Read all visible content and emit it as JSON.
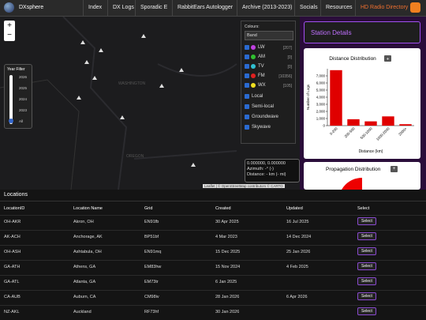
{
  "nav": {
    "brand": "DXsphere",
    "links": [
      "Index",
      "DX Logs",
      "Sporadic E",
      "RabbitEars Autologger",
      "Archive (2013-2023)",
      "Socials",
      "Resources",
      "HD Radio Directory"
    ]
  },
  "map": {
    "zoom": [
      "+",
      "−"
    ],
    "labels": [
      "WASHINGTON",
      "OREGON"
    ],
    "coords": "0.000000, 0.000000",
    "azimuth": "Azimuth: -° (-)",
    "distance": "Distance: - km (- mi)",
    "attribution": "Leaflet | © OpenStreetMap contributors © CARTO"
  },
  "year_filter": {
    "title": "Year Filter",
    "years": [
      "2026",
      "2025",
      "2024",
      "2023",
      "All"
    ]
  },
  "colours": {
    "title": "Colours:",
    "select": "Band",
    "bands": [
      {
        "name": "LW",
        "count": "[207]",
        "color": "#c040e0"
      },
      {
        "name": "AM",
        "count": "[0]",
        "color": "#30c030"
      },
      {
        "name": "TV",
        "count": "[0]",
        "color": "#30c0d0"
      },
      {
        "name": "FM",
        "count": "[10356]",
        "color": "#e02020"
      },
      {
        "name": "WX",
        "count": "[105]",
        "color": "#f0e020"
      }
    ],
    "filters": [
      "Local",
      "Semi-local",
      "Groundwave",
      "Skywave"
    ]
  },
  "station_details": {
    "title": "Station Details"
  },
  "distance_button": "+",
  "chart_data": {
    "type": "bar",
    "title": "Distance Distribution",
    "y_label": "Number of Logs",
    "x_label": "Distance (km)",
    "categories": [
      "0-200",
      "200-500",
      "500-1000",
      "1000-2000",
      "2000+"
    ],
    "values": [
      7800,
      900,
      600,
      1300,
      200
    ],
    "color": "#e00000",
    "ylim": [
      0,
      8000
    ],
    "yticks": [
      0,
      {
        "value": 1000,
        "label": "1,000"
      },
      {
        "value": 2000,
        "label": "2,000"
      },
      {
        "value": 3000,
        "label": "3,000"
      },
      {
        "value": 4000,
        "label": "4,000"
      },
      {
        "value": 5000,
        "label": "5,000"
      },
      {
        "value": 6000,
        "label": "6,000"
      },
      {
        "value": 7000,
        "label": "7,000"
      }
    ]
  },
  "propagation": {
    "title": "Propagation Distribution",
    "button": "+"
  },
  "table": {
    "title": "Locations",
    "headers": [
      "LocationID",
      "Location Name",
      "Grid",
      "Created",
      "Updated",
      "Select"
    ],
    "rows": [
      [
        "OH-AKR",
        "Akron, OH",
        "EN91fb",
        "30 Apr 2025",
        "16 Jul 2025",
        "Select"
      ],
      [
        "AK-ACH",
        "Anchorage, AK",
        "BP51bf",
        "4 Mar 2023",
        "14 Dec 2024",
        "Select"
      ],
      [
        "OH-ASH",
        "Ashtabula, OH",
        "EN91mq",
        "15 Dec 2025",
        "25 Jan 2026",
        "Select"
      ],
      [
        "GA-ATH",
        "Athens, GA",
        "EM83hw",
        "15 Nov 2024",
        "4 Feb 2025",
        "Select"
      ],
      [
        "GA-ATL",
        "Atlanta, GA",
        "EM73tr",
        "6 Jan 2025",
        "",
        "Select"
      ],
      [
        "CA-AUB",
        "Auburn, CA",
        "CM98iv",
        "28 Jan 2026",
        "6 Apr 2026",
        "Select"
      ],
      [
        "NZ-AKL",
        "Auckland",
        "RF73hf",
        "30 Jan 2026",
        "",
        "Select"
      ]
    ]
  }
}
